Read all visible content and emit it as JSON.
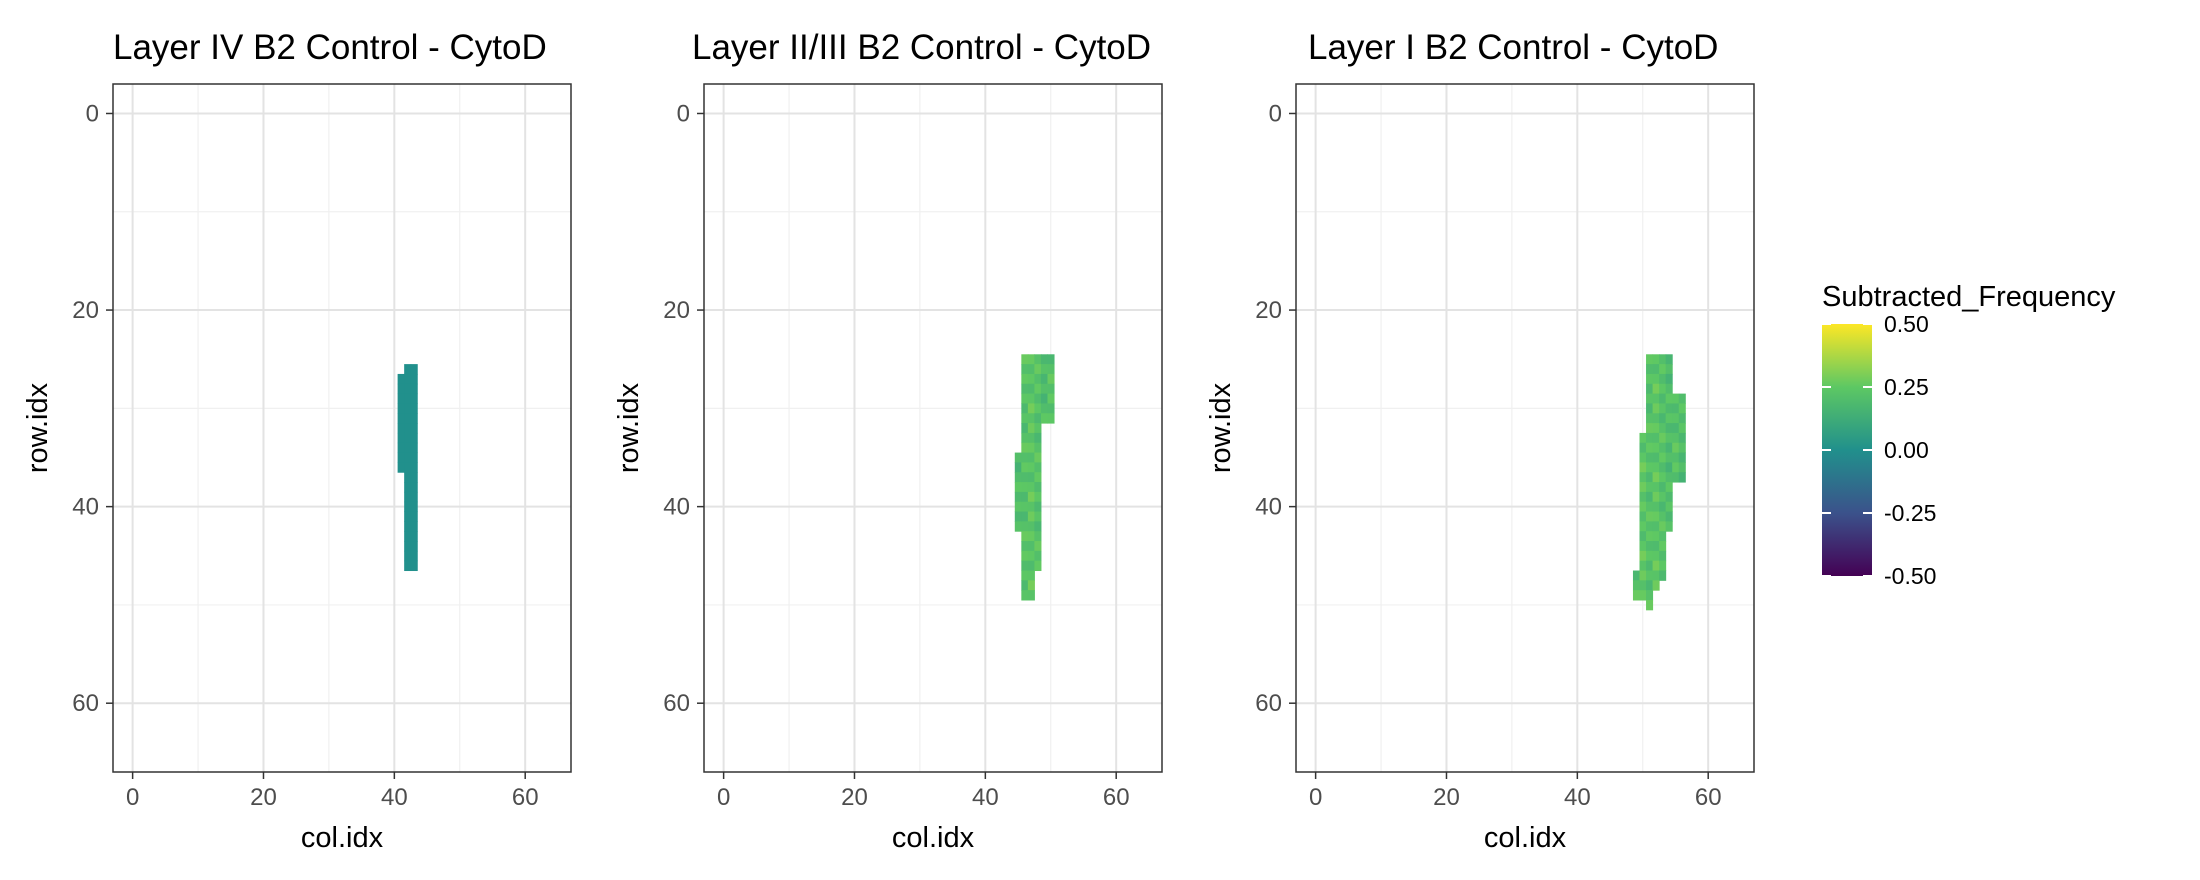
{
  "chart_data": [
    {
      "type": "heatmap",
      "title": "Layer IV B2 Control - CytoD",
      "xlabel": "col.idx",
      "ylabel": "row.idx",
      "xlim": [
        -3,
        67
      ],
      "ylim": [
        67,
        -3
      ],
      "xticks": [
        "0",
        "20",
        "40",
        "60"
      ],
      "yticks": [
        "0",
        "20",
        "40",
        "60"
      ],
      "grid": true,
      "cells": [
        {
          "col": 41,
          "row_start": 27,
          "row_end": 36,
          "value": 0.0
        },
        {
          "col": 42,
          "row_start": 26,
          "row_end": 46,
          "value": 0.0
        },
        {
          "col": 43,
          "row_start": 26,
          "row_end": 46,
          "value": 0.0
        }
      ]
    },
    {
      "type": "heatmap",
      "title": "Layer II/III B2 Control - CytoD",
      "xlabel": "col.idx",
      "ylabel": "row.idx",
      "xlim": [
        -3,
        67
      ],
      "ylim": [
        67,
        -3
      ],
      "xticks": [
        "0",
        "20",
        "40",
        "60"
      ],
      "yticks": [
        "0",
        "20",
        "40",
        "60"
      ],
      "grid": true,
      "cells": [
        {
          "col": 45,
          "row_start": 35,
          "row_end": 42,
          "value": 0.2
        },
        {
          "col": 46,
          "row_start": 25,
          "row_end": 49,
          "value": 0.22
        },
        {
          "col": 47,
          "row_start": 25,
          "row_end": 49,
          "value": 0.24
        },
        {
          "col": 48,
          "row_start": 25,
          "row_end": 46,
          "value": 0.22
        },
        {
          "col": 49,
          "row_start": 25,
          "row_end": 31,
          "value": 0.2
        },
        {
          "col": 50,
          "row_start": 25,
          "row_end": 31,
          "value": 0.22
        }
      ]
    },
    {
      "type": "heatmap",
      "title": "Layer I B2 Control - CytoD",
      "xlabel": "col.idx",
      "ylabel": "row.idx",
      "xlim": [
        -3,
        67
      ],
      "ylim": [
        67,
        -3
      ],
      "xticks": [
        "0",
        "20",
        "40",
        "60"
      ],
      "yticks": [
        "0",
        "20",
        "40",
        "60"
      ],
      "grid": true,
      "cells": [
        {
          "col": 49,
          "row_start": 47,
          "row_end": 49,
          "value": 0.22
        },
        {
          "col": 50,
          "row_start": 33,
          "row_end": 49,
          "value": 0.24
        },
        {
          "col": 51,
          "row_start": 25,
          "row_end": 50,
          "value": 0.22
        },
        {
          "col": 52,
          "row_start": 25,
          "row_end": 48,
          "value": 0.24
        },
        {
          "col": 53,
          "row_start": 25,
          "row_end": 47,
          "value": 0.22
        },
        {
          "col": 54,
          "row_start": 25,
          "row_end": 42,
          "value": 0.2
        },
        {
          "col": 55,
          "row_start": 29,
          "row_end": 37,
          "value": 0.22
        },
        {
          "col": 56,
          "row_start": 29,
          "row_end": 37,
          "value": 0.2
        }
      ]
    }
  ],
  "legend": {
    "title": "Subtracted_Frequency",
    "labels": [
      "0.50",
      "0.25",
      "0.00",
      "-0.25",
      "-0.50"
    ],
    "range": [
      -0.5,
      0.5
    ],
    "colors": [
      "#440154",
      "#3b528b",
      "#21908c",
      "#5dc863",
      "#fde725"
    ]
  }
}
